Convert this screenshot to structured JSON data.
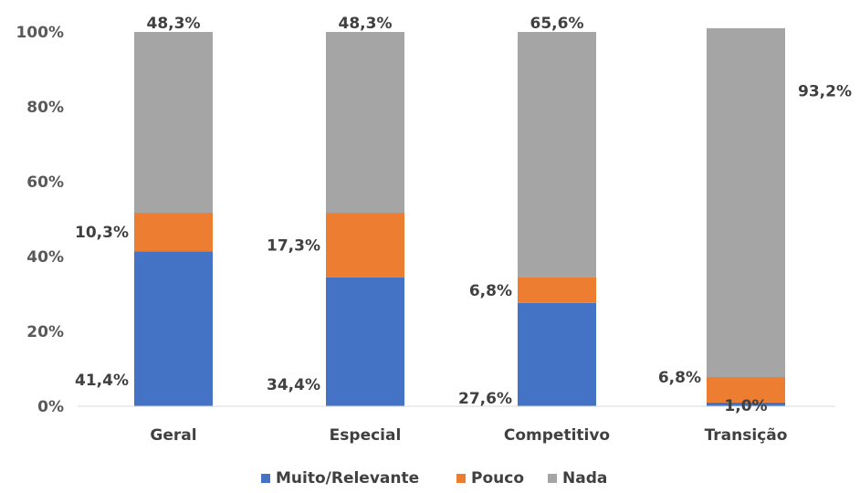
{
  "chart_data": {
    "type": "bar",
    "stacked": true,
    "categories": [
      "Geral",
      "Especial",
      "Competitivo",
      "Transição"
    ],
    "series": [
      {
        "name": "Muito/Relevante",
        "color": "#4472C4",
        "values": [
          41.4,
          34.4,
          27.6,
          1.0
        ],
        "labels": [
          "41,4%",
          "34,4%",
          "27,6%",
          "1,0%"
        ]
      },
      {
        "name": "Pouco",
        "color": "#ED7D31",
        "values": [
          10.3,
          17.3,
          6.8,
          6.8
        ],
        "labels": [
          "10,3%",
          "17,3%",
          "6,8%",
          "6,8%"
        ]
      },
      {
        "name": "Nada",
        "color": "#A5A5A5",
        "values": [
          48.3,
          48.3,
          65.6,
          93.2
        ],
        "labels": [
          "48,3%",
          "48,3%",
          "65,6%",
          "93,2%"
        ]
      }
    ],
    "yticks": [
      "0%",
      "20%",
      "40%",
      "60%",
      "80%",
      "100%"
    ],
    "ylim": [
      0,
      100
    ],
    "grid": false,
    "legend": "bottom"
  }
}
